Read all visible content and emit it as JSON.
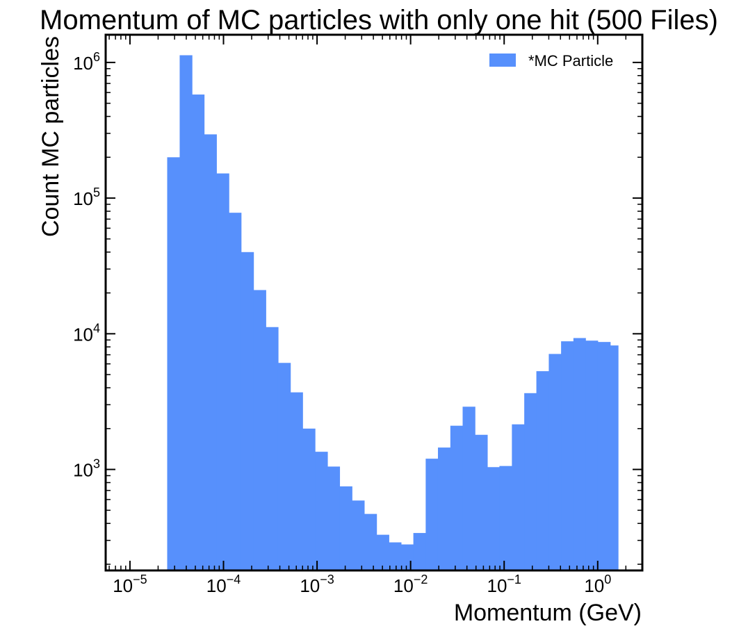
{
  "chart_data": {
    "type": "bar",
    "title": "Momentum of MC particles with only one hit (500 Files)",
    "xlabel": "Momentum (GeV)",
    "ylabel": "Count MC particles",
    "xscale": "log",
    "yscale": "log",
    "xlim": [
      5.5e-06,
      3.0
    ],
    "ylim": [
      180,
      1600000.0
    ],
    "grid": false,
    "legend_position": "top-right",
    "x_tick_labels": [
      {
        "base": "10",
        "exp": "−5",
        "value": 1e-05
      },
      {
        "base": "10",
        "exp": "−4",
        "value": 0.0001
      },
      {
        "base": "10",
        "exp": "−3",
        "value": 0.001
      },
      {
        "base": "10",
        "exp": "−2",
        "value": 0.01
      },
      {
        "base": "10",
        "exp": "−1",
        "value": 0.1
      },
      {
        "base": "10",
        "exp": "0",
        "value": 1
      }
    ],
    "y_tick_labels": [
      {
        "base": "10",
        "exp": "3",
        "value": 1000.0
      },
      {
        "base": "10",
        "exp": "4",
        "value": 10000.0
      },
      {
        "base": "10",
        "exp": "5",
        "value": 100000.0
      },
      {
        "base": "10",
        "exp": "6",
        "value": 1000000.0
      }
    ],
    "series": [
      {
        "name": "*MC Particle",
        "color": "#5790fc",
        "bin_edges": [
          2.5e-05,
          3.4e-05,
          4.6e-05,
          6.2e-05,
          8.4e-05,
          0.000114,
          0.000154,
          0.000209,
          0.000283,
          0.000383,
          0.000518,
          0.0007,
          0.00095,
          0.00129,
          0.00174,
          0.00236,
          0.00319,
          0.00432,
          0.00585,
          0.0079,
          0.0107,
          0.0145,
          0.0196,
          0.0266,
          0.036,
          0.0487,
          0.066,
          0.089,
          0.121,
          0.164,
          0.221,
          0.3,
          0.406,
          0.55,
          0.74,
          1.0,
          1.36,
          1.65
        ],
        "values": [
          200000,
          1130000,
          580000,
          295000,
          152000,
          78000,
          40000,
          21000,
          11200,
          6100,
          3700,
          2000,
          1350,
          1050,
          750,
          590,
          470,
          330,
          290,
          280,
          340,
          1200,
          1450,
          2100,
          2900,
          1800,
          1040,
          1060,
          2150,
          3650,
          5300,
          7100,
          8800,
          9300,
          8900,
          8700,
          8200
        ]
      }
    ]
  }
}
